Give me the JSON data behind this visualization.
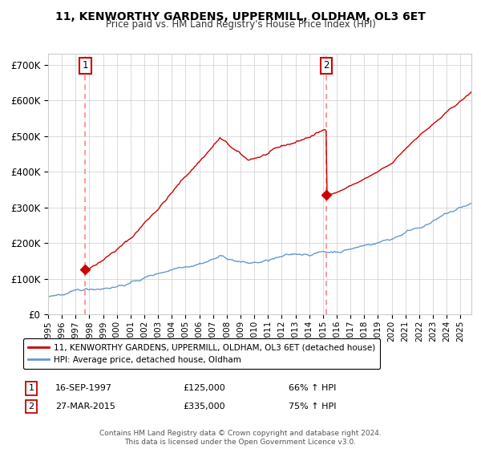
{
  "title": "11, KENWORTHY GARDENS, UPPERMILL, OLDHAM, OL3 6ET",
  "subtitle": "Price paid vs. HM Land Registry's House Price Index (HPI)",
  "ylabel_ticks": [
    "£0",
    "£100K",
    "£200K",
    "£300K",
    "£400K",
    "£500K",
    "£600K",
    "£700K"
  ],
  "ytick_values": [
    0,
    100000,
    200000,
    300000,
    400000,
    500000,
    600000,
    700000
  ],
  "ylim": [
    0,
    730000
  ],
  "xlim_start": 1995.0,
  "xlim_end": 2025.8,
  "sale1_date": 1997.71,
  "sale1_price": 125000,
  "sale1_label": "1",
  "sale2_date": 2015.23,
  "sale2_price": 335000,
  "sale2_label": "2",
  "red_color": "#cc0000",
  "blue_color": "#6699cc",
  "dashed_color": "#ff8888",
  "background_color": "#ffffff",
  "grid_color": "#cccccc",
  "legend_label_red": "11, KENWORTHY GARDENS, UPPERMILL, OLDHAM, OL3 6ET (detached house)",
  "legend_label_blue": "HPI: Average price, detached house, Oldham",
  "table_row1": [
    "1",
    "16-SEP-1997",
    "£125,000",
    "66% ↑ HPI"
  ],
  "table_row2": [
    "2",
    "27-MAR-2015",
    "£335,000",
    "75% ↑ HPI"
  ],
  "footer": "Contains HM Land Registry data © Crown copyright and database right 2024.\nThis data is licensed under the Open Government Licence v3.0."
}
